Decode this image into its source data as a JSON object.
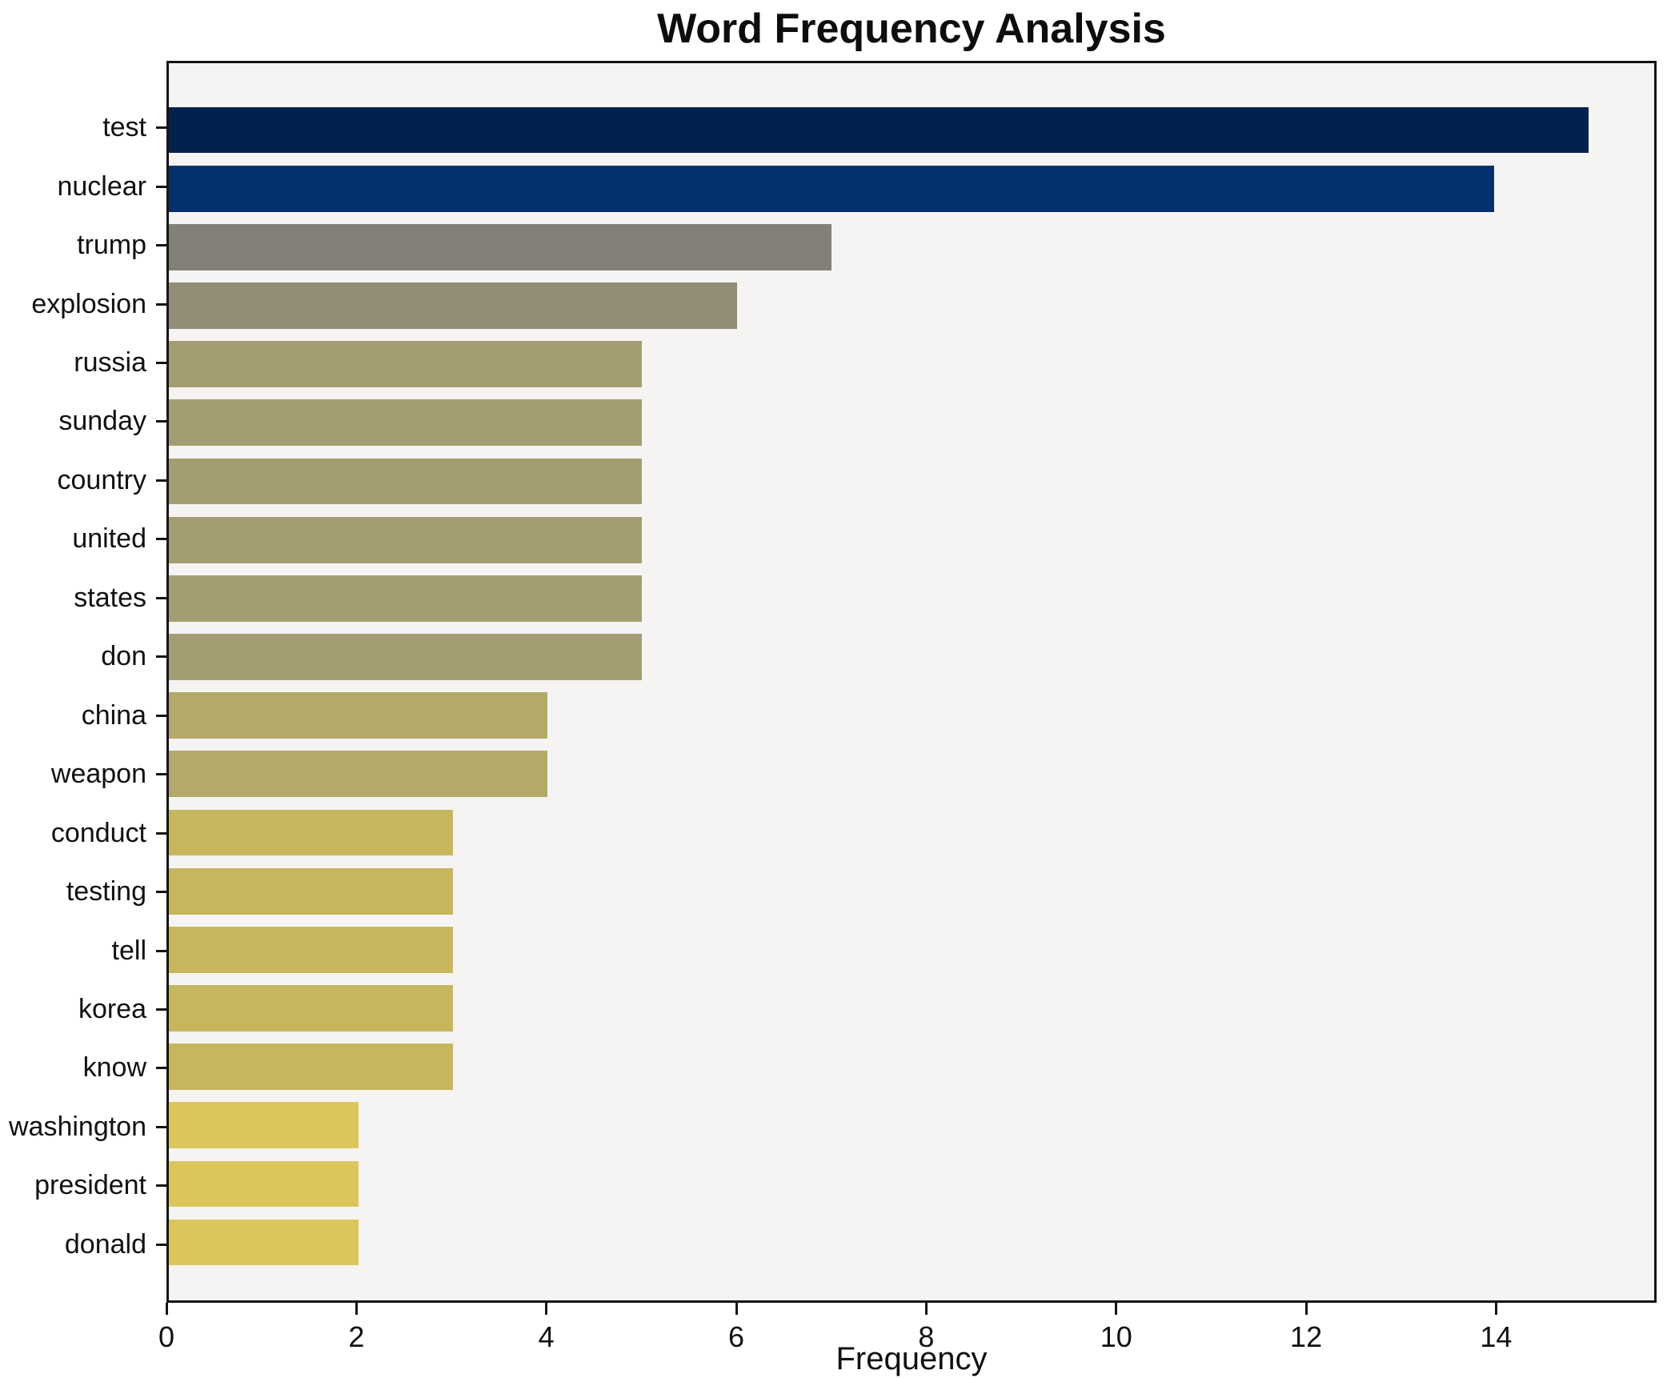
{
  "title": "Word Frequency Analysis",
  "chart_data": {
    "type": "bar",
    "orientation": "horizontal",
    "title": "Word Frequency Analysis",
    "xlabel": "Frequency",
    "ylabel": "",
    "categories": [
      "test",
      "nuclear",
      "trump",
      "explosion",
      "russia",
      "sunday",
      "country",
      "united",
      "states",
      "don",
      "china",
      "weapon",
      "conduct",
      "testing",
      "tell",
      "korea",
      "know",
      "washington",
      "president",
      "donald"
    ],
    "values": [
      15,
      14,
      7,
      6,
      5,
      5,
      5,
      5,
      5,
      5,
      4,
      4,
      3,
      3,
      3,
      3,
      3,
      2,
      2,
      2
    ],
    "bar_colors": [
      "#02214f",
      "#04316e",
      "#838079",
      "#928e76",
      "#a49d72",
      "#a49d72",
      "#a49d72",
      "#a49d72",
      "#a49d72",
      "#a49d72",
      "#b3a96a",
      "#b3a96a",
      "#c6b75f",
      "#c6b75f",
      "#c6b75f",
      "#c6b75f",
      "#c6b75f",
      "#dcc65c",
      "#dcc65c",
      "#dcc65c"
    ],
    "xlim": [
      0,
      15.69
    ],
    "x_ticks": [
      "0",
      "2",
      "4",
      "6",
      "8",
      "10",
      "12",
      "14"
    ],
    "grid": false,
    "legend_position": "none",
    "plot_bg": "#f5f4f2",
    "figure_bg": "#ffffff",
    "spine_color": "#141414",
    "colormap": "cividis-by-value"
  }
}
